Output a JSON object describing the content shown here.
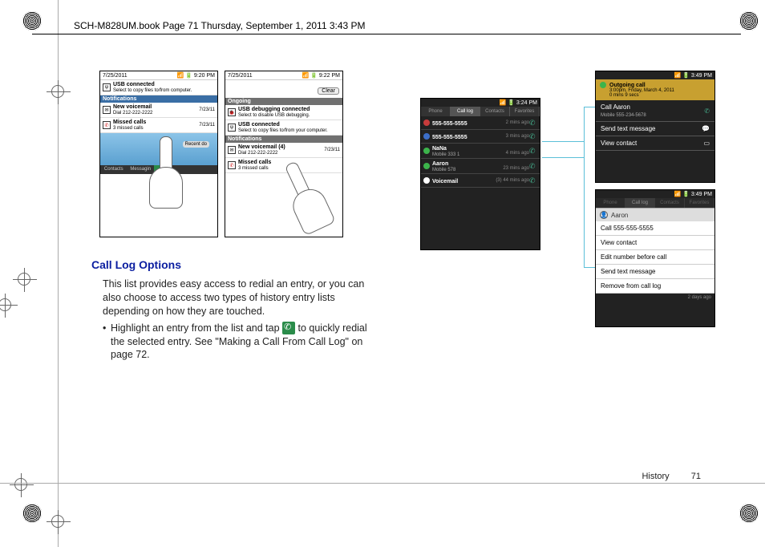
{
  "header": {
    "text": "SCH-M828UM.book  Page 71  Thursday, September 1, 2011  3:43 PM"
  },
  "footer": {
    "section": "History",
    "page": "71"
  },
  "colors": {
    "heading": "#0b1ea0",
    "connector": "#5bbfd8",
    "section_bar_blue": "#3a6ea5",
    "section_bar_gray": "#707070",
    "call_green": "#4a8c5a",
    "marker_red": "#c83c3c",
    "marker_green": "#3cb44b",
    "marker_blue": "#3c6ec8",
    "dial_icon": "#2a8c4a"
  },
  "shot1": {
    "date": "7/25/2011",
    "time": "9:20 PM",
    "usb": {
      "title": "USB connected",
      "sub": "Select to copy files to/from computer."
    },
    "section_notif": "Notifications",
    "voicemail": {
      "title": "New voicemail",
      "sub": "Dial 212-222-2222",
      "when": "7/23/11"
    },
    "missed": {
      "title": "Missed calls",
      "sub": "3 missed calls",
      "when": "7/23/11"
    },
    "recent": "Recent do",
    "bottom": [
      "Contacts",
      "Messagin"
    ]
  },
  "shot2": {
    "date": "7/25/2011",
    "time": "9:22 PM",
    "clear": "Clear",
    "section_ongoing": "Ongoing",
    "usb_debug": {
      "title": "USB debugging connected",
      "sub": "Select to disable USB debugging."
    },
    "usb": {
      "title": "USB connected",
      "sub": "Select to copy files to/from your computer."
    },
    "section_notif": "Notifications",
    "voicemail": {
      "title": "New voicemail (4)",
      "sub": "Dial 212-222-2222",
      "when": "7/23/11"
    },
    "missed": {
      "title": "Missed calls",
      "sub": "3 missed calls"
    }
  },
  "shot3": {
    "time": "3:24 PM",
    "tabs": [
      "Phone",
      "Call log",
      "Contacts",
      "Favorites"
    ],
    "entries": [
      {
        "marker": "#c83c3c",
        "name": "555-555-5555",
        "sub": "",
        "when": "2 mins ago"
      },
      {
        "marker": "#3c6ec8",
        "name": "555-555-5555",
        "sub": "",
        "when": "3 mins ago"
      },
      {
        "marker": "#3cb44b",
        "name": "NaNa",
        "sub": "Mobile  333   1",
        "when": "4 mins ago"
      },
      {
        "marker": "#3cb44b",
        "name": "Aaron",
        "sub": "Mobile  578",
        "when": "23 mins ago"
      },
      {
        "marker": "#ffffff",
        "name": "Voicemail",
        "sub": "",
        "when": "(3)   44 mins ago"
      }
    ]
  },
  "shot4": {
    "time": "3:49 PM",
    "header": {
      "kind": "Outgoing call",
      "when": "3:00pm, Friday, March 4, 2011",
      "dur": "0 mins 9 secs"
    },
    "rows": [
      {
        "label": "Call Aaron",
        "sub": "Mobile 555-234-5678",
        "icon": "phone"
      },
      {
        "label": "Send text message",
        "icon": "chat"
      },
      {
        "label": "View contact",
        "icon": "card"
      }
    ]
  },
  "shot5": {
    "time": "3:49 PM",
    "contact": "Aaron",
    "menu": [
      "Call 555-555-5555",
      "View contact",
      "Edit number before call",
      "Send text message",
      "Remove from call log"
    ],
    "footer_when": "2 days ago"
  },
  "text": {
    "heading": "Call Log Options",
    "para": "This list provides easy access to redial an entry, or you can also choose to access two types of history entry lists depending on how they are touched.",
    "bullet_pre": "Highlight an entry from the list and tap ",
    "bullet_post": " to quickly redial the selected entry. See \"Making a Call From Call Log\" on page 72."
  }
}
